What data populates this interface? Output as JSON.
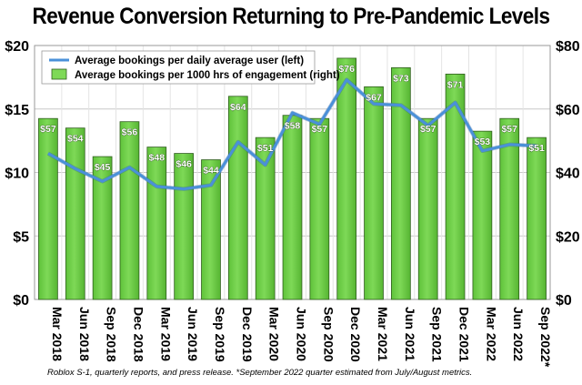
{
  "chart_data": {
    "type": "bar+line",
    "title": "Revenue Conversion Returning to Pre-Pandemic Levels",
    "categories": [
      "Mar 2018",
      "Jun 2018",
      "Sep 2018",
      "Dec 2018",
      "Mar 2019",
      "Jun 2019",
      "Sep 2019",
      "Dec 2019",
      "Mar 2020",
      "Jun 2020",
      "Sep 2020",
      "Dec 2020",
      "Mar 2021",
      "Jun 2021",
      "Sep 2021",
      "Dec 2021",
      "Mar 2022",
      "Jun 2022",
      "Sep 2022*"
    ],
    "series": [
      {
        "name": "Average bookings per daily average user (left)",
        "type": "line",
        "axis": "left",
        "color": "#4a90d9",
        "values": [
          11.5,
          10.3,
          9.3,
          10.4,
          8.9,
          8.7,
          9.0,
          12.4,
          10.6,
          14.7,
          13.8,
          17.3,
          15.4,
          15.3,
          13.7,
          15.5,
          11.7,
          12.2,
          12.1
        ]
      },
      {
        "name": "Average bookings per 1000 hrs of engagement (right)",
        "type": "bar",
        "axis": "right",
        "color": "#7ed957",
        "values": [
          57,
          54,
          45,
          56,
          48,
          46,
          44,
          64,
          51,
          58,
          57,
          76,
          67,
          73,
          57,
          71,
          53,
          57,
          51
        ],
        "labels": [
          "$57",
          "$54",
          "$45",
          "$56",
          "$48",
          "$46",
          "$44",
          "$64",
          "$51",
          "$58",
          "$57",
          "$76",
          "$67",
          "$73",
          "$57",
          "$71",
          "$53",
          "$57",
          "$51"
        ]
      }
    ],
    "left_axis": {
      "ylim": [
        0,
        20
      ],
      "ticks": [
        0,
        5,
        10,
        15,
        20
      ],
      "tick_labels": [
        "$0",
        "$5",
        "$10",
        "$15",
        "$20"
      ]
    },
    "right_axis": {
      "ylim": [
        0,
        80
      ],
      "ticks": [
        0,
        20,
        40,
        60,
        80
      ],
      "tick_labels": [
        "$0",
        "$20",
        "$40",
        "$60",
        "$80"
      ]
    },
    "grid": true,
    "legend_position": "top-left",
    "footnote": "Roblox S-1, quarterly reports, and press release. *September 2022 quarter estimated from July/August metrics."
  }
}
